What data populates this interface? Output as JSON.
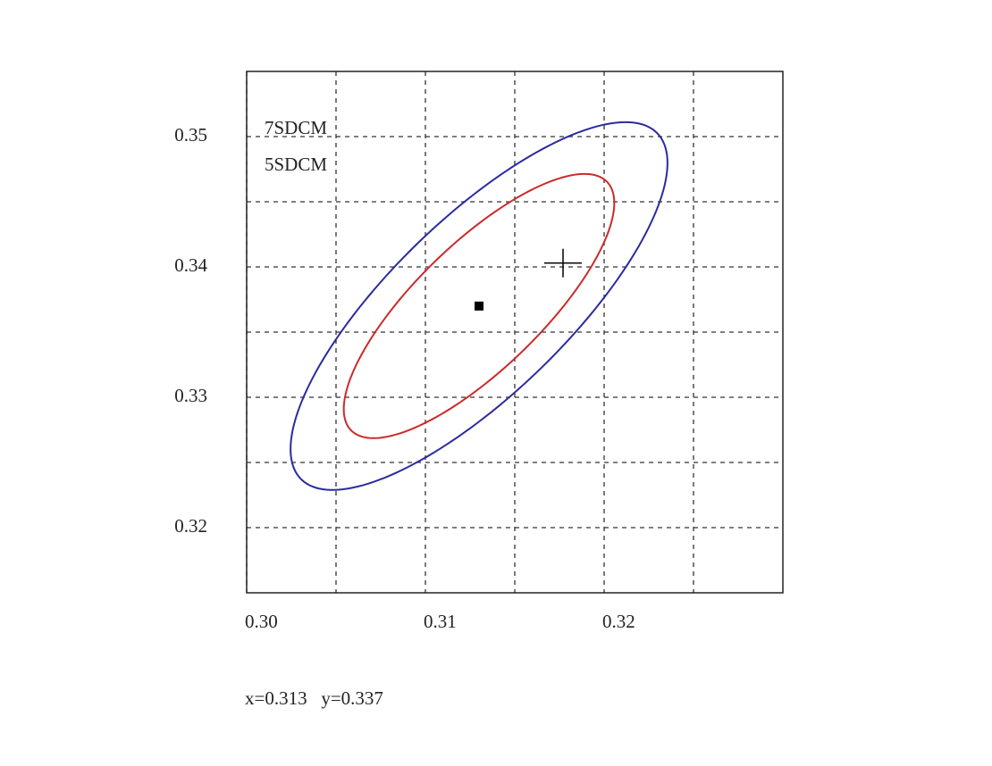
{
  "chart_data": {
    "type": "ellipse",
    "xlim": [
      0.3,
      0.33
    ],
    "ylim": [
      0.315,
      0.355
    ],
    "xticks": [
      {
        "value": 0.3,
        "label": "0.30"
      },
      {
        "value": 0.305,
        "label": null
      },
      {
        "value": 0.31,
        "label": "0.31"
      },
      {
        "value": 0.315,
        "label": null
      },
      {
        "value": 0.32,
        "label": "0.32"
      },
      {
        "value": 0.325,
        "label": null
      }
    ],
    "yticks": [
      0.32,
      {
        "value": 0.325,
        "label": null
      },
      0.33,
      {
        "value": 0.335,
        "label": null
      },
      0.34,
      {
        "value": 0.345,
        "label": null
      },
      0.35
    ],
    "grid": true,
    "legend": "top-left",
    "series": [
      {
        "name": "7SDCM",
        "color": "#2b2ba0",
        "center": [
          0.313,
          0.337
        ],
        "a": 0.0167,
        "b": 0.0056,
        "angle": 55.4
      },
      {
        "name": "5SDCM",
        "color": "#cc2a2a",
        "center": [
          0.313,
          0.337
        ],
        "a": 0.012,
        "b": 0.004,
        "angle": 55.4
      }
    ],
    "points": [
      {
        "marker": "square",
        "color": "#000000",
        "x": 0.313,
        "y": 0.337
      },
      {
        "marker": "cross",
        "color": "#000000",
        "x": 0.3177,
        "y": 0.3403
      }
    ],
    "readout": "x=0.313   y=0.337"
  }
}
